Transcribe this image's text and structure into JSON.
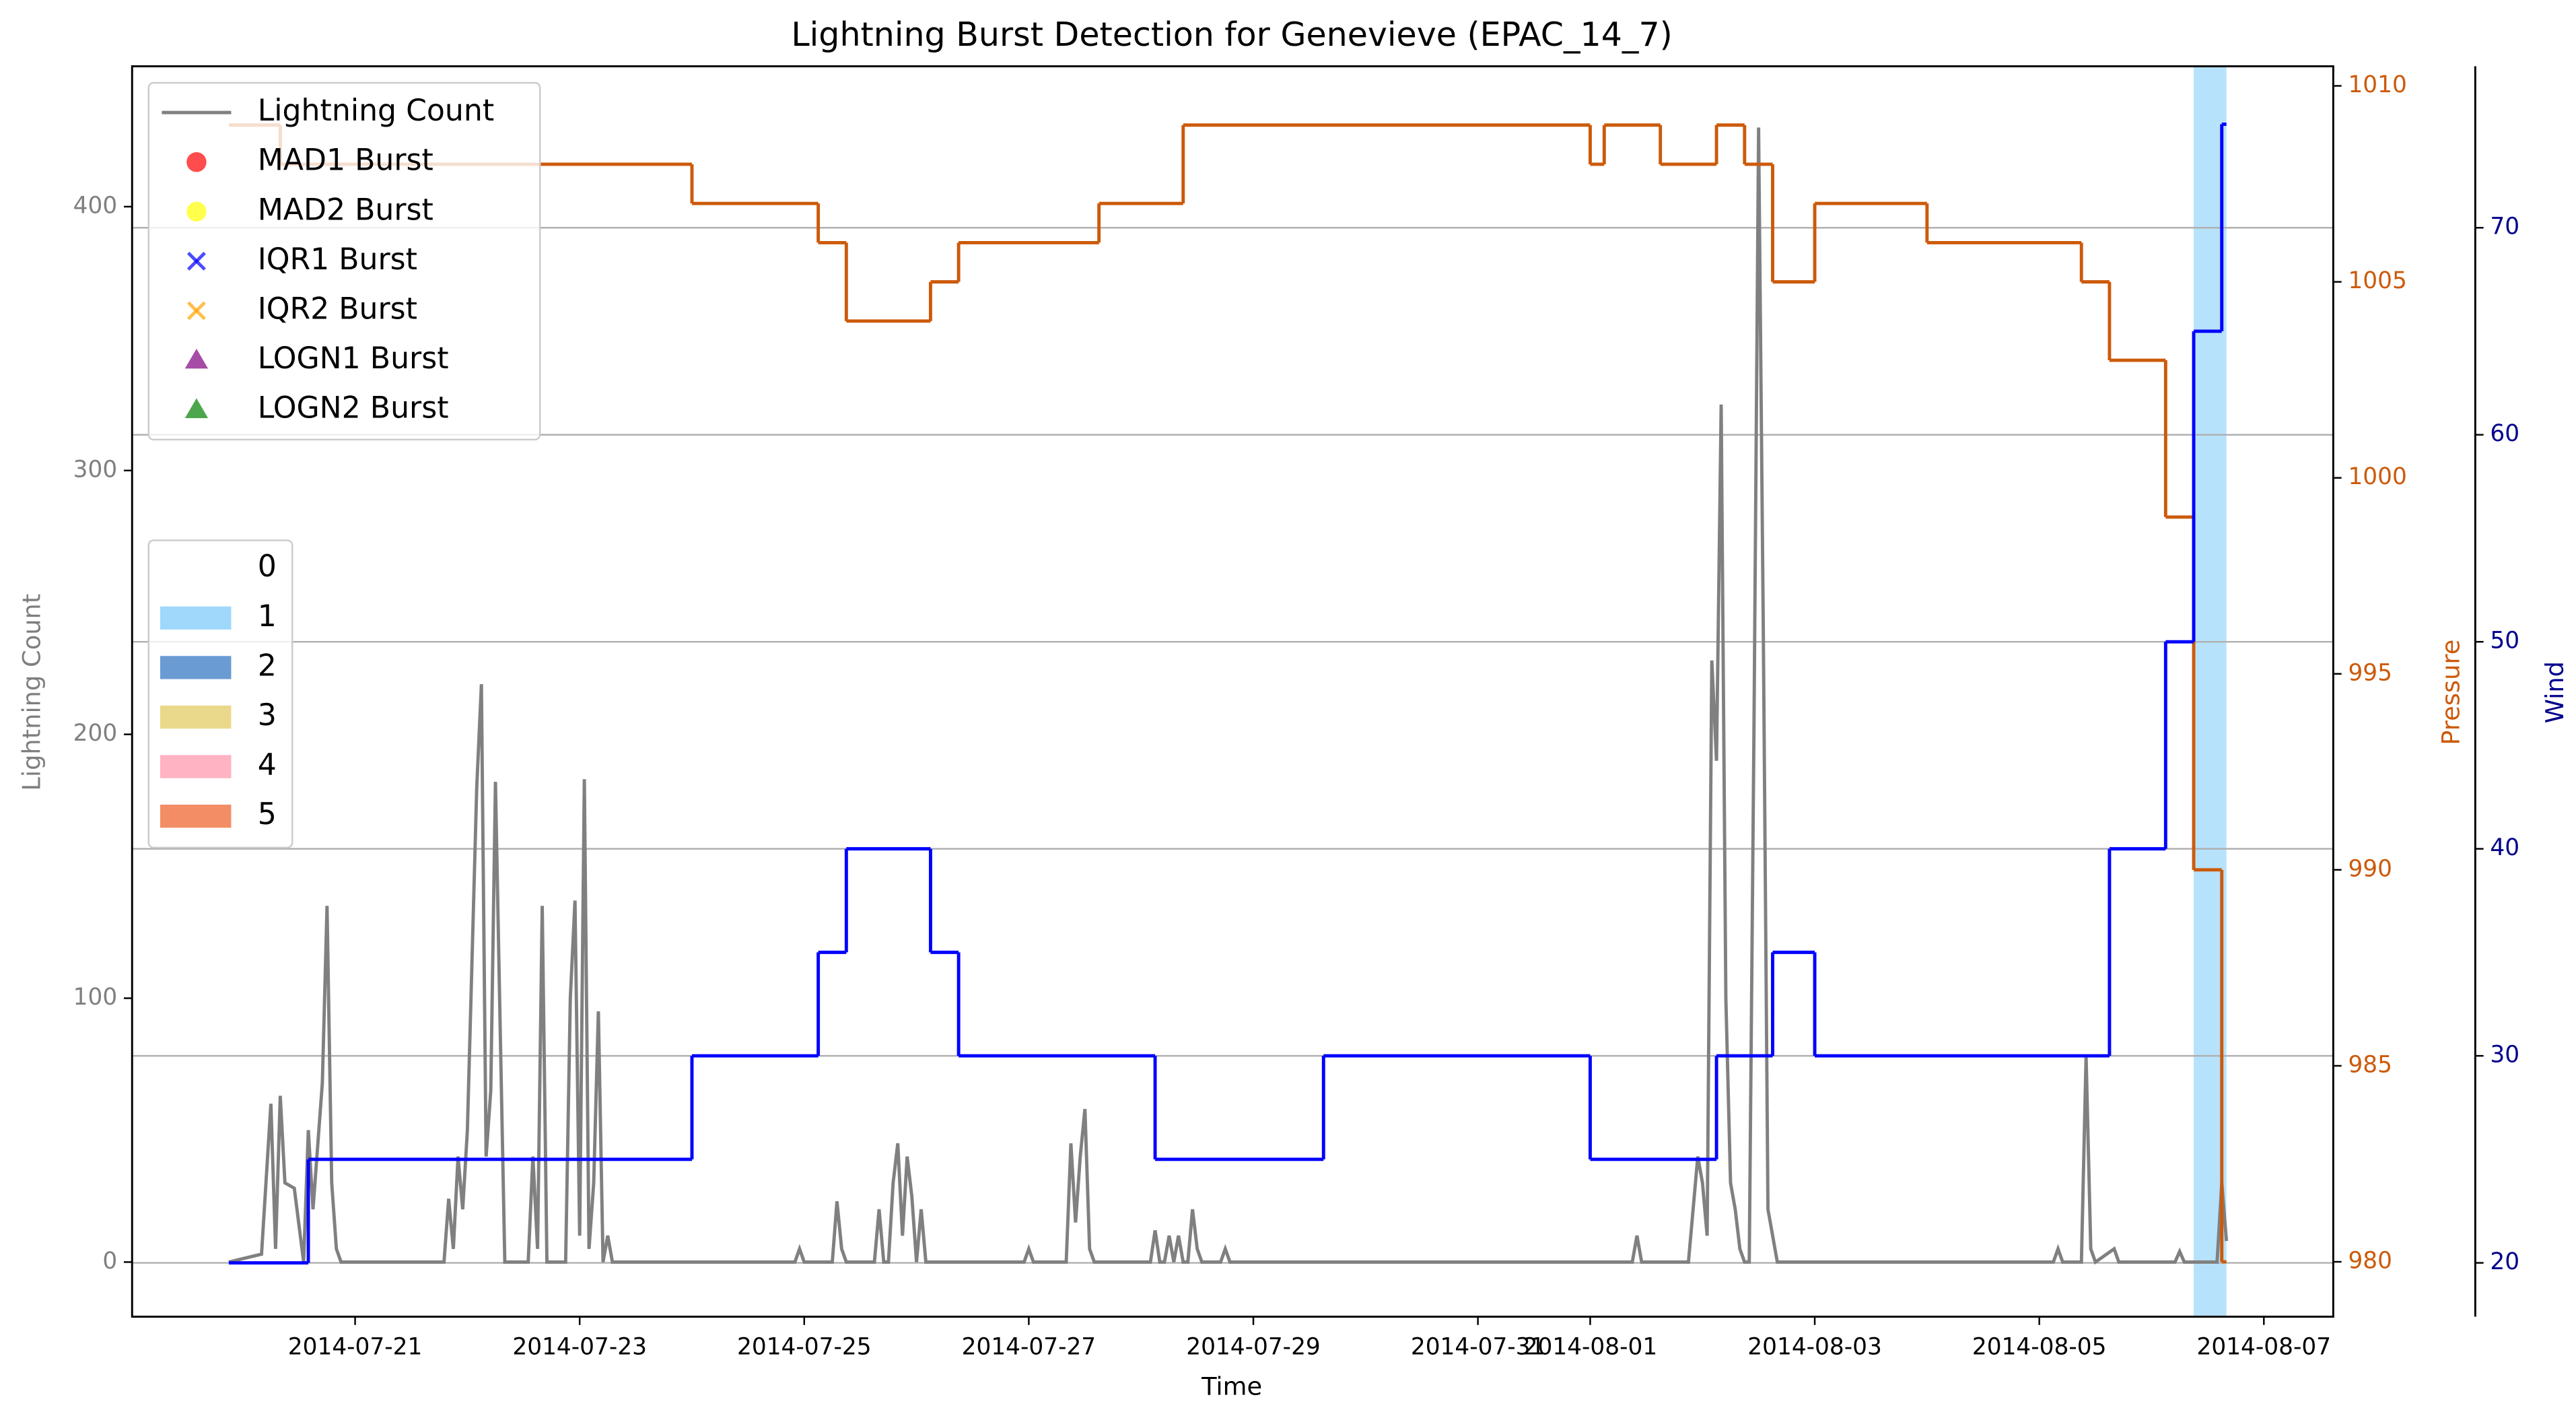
{
  "chart_data": {
    "type": "line",
    "title": "Lightning Burst Detection for Genevieve (EPAC_14_7)",
    "xlabel": "Time",
    "ylabel": "Lightning Count",
    "y2label": "Pressure",
    "y3label": "Wind",
    "y_color": "#7f7f7f",
    "y2_color": "#cc5a0a",
    "y3_color": "#00008b",
    "xlim": [
      "2014-07-19 00:20",
      "2014-08-07 14:50"
    ],
    "xticks": [
      "2014-07-21",
      "2014-07-23",
      "2014-07-25",
      "2014-07-27",
      "2014-07-29",
      "2014-07-31",
      "2014-08-01",
      "2014-08-03",
      "2014-08-05",
      "2014-08-07"
    ],
    "ylim": [
      -20.7,
      453.2
    ],
    "yticks": [
      0,
      100,
      200,
      300,
      400
    ],
    "y2lim": [
      978.6,
      1010.5
    ],
    "y2ticks": [
      980,
      985,
      990,
      995,
      1000,
      1005,
      1010
    ],
    "y3lim": [
      17.4,
      77.8
    ],
    "y3ticks": [
      20,
      30,
      40,
      50,
      60,
      70
    ],
    "grid": true,
    "series": [
      {
        "name": "Lightning Count",
        "color": "#808080",
        "axis": "y",
        "style": "line",
        "x": [
          "2014-07-19 21:00",
          "2014-07-20 04:00",
          "2014-07-20 06:00",
          "2014-07-20 07:00",
          "2014-07-20 08:00",
          "2014-07-20 09:00",
          "2014-07-20 11:00",
          "2014-07-20 13:00",
          "2014-07-20 14:00",
          "2014-07-20 15:00",
          "2014-07-20 17:00",
          "2014-07-20 18:00",
          "2014-07-20 19:00",
          "2014-07-20 20:00",
          "2014-07-20 21:00",
          "2014-07-21 19:00",
          "2014-07-21 20:00",
          "2014-07-21 21:00",
          "2014-07-21 22:00",
          "2014-07-21 23:00",
          "2014-07-22 00:00",
          "2014-07-22 02:00",
          "2014-07-22 03:00",
          "2014-07-22 04:00",
          "2014-07-22 05:00",
          "2014-07-22 06:00",
          "2014-07-22 07:00",
          "2014-07-22 08:00",
          "2014-07-22 13:00",
          "2014-07-22 14:00",
          "2014-07-22 15:00",
          "2014-07-22 16:00",
          "2014-07-22 17:00",
          "2014-07-22 21:00",
          "2014-07-22 22:00",
          "2014-07-22 23:00",
          "2014-07-23 00:00",
          "2014-07-23 01:00",
          "2014-07-23 02:00",
          "2014-07-23 03:00",
          "2014-07-23 04:00",
          "2014-07-23 05:00",
          "2014-07-23 06:00",
          "2014-07-23 07:00",
          "2014-07-24 22:00",
          "2014-07-24 23:00",
          "2014-07-25 00:00",
          "2014-07-25 06:00",
          "2014-07-25 07:00",
          "2014-07-25 08:00",
          "2014-07-25 09:00",
          "2014-07-25 15:00",
          "2014-07-25 16:00",
          "2014-07-25 17:00",
          "2014-07-25 18:00",
          "2014-07-25 19:00",
          "2014-07-25 20:00",
          "2014-07-25 21:00",
          "2014-07-25 22:00",
          "2014-07-25 23:00",
          "2014-07-26 00:00",
          "2014-07-26 01:00",
          "2014-07-26 02:00",
          "2014-07-26 23:00",
          "2014-07-27 00:00",
          "2014-07-27 01:00",
          "2014-07-27 08:00",
          "2014-07-27 09:00",
          "2014-07-27 10:00",
          "2014-07-27 11:00",
          "2014-07-27 12:00",
          "2014-07-27 13:00",
          "2014-07-27 14:00",
          "2014-07-28 02:00",
          "2014-07-28 03:00",
          "2014-07-28 04:00",
          "2014-07-28 05:00",
          "2014-07-28 06:00",
          "2014-07-28 07:00",
          "2014-07-28 08:00",
          "2014-07-28 09:00",
          "2014-07-28 10:00",
          "2014-07-28 11:00",
          "2014-07-28 12:00",
          "2014-07-28 13:00",
          "2014-07-28 17:00",
          "2014-07-28 18:00",
          "2014-07-28 19:00",
          "2014-08-01 09:00",
          "2014-08-01 10:00",
          "2014-08-01 11:00",
          "2014-08-01 21:00",
          "2014-08-01 23:00",
          "2014-08-02 00:00",
          "2014-08-02 01:00",
          "2014-08-02 02:00",
          "2014-08-02 03:00",
          "2014-08-02 04:00",
          "2014-08-02 05:00",
          "2014-08-02 06:00",
          "2014-08-02 07:00",
          "2014-08-02 08:00",
          "2014-08-02 09:00",
          "2014-08-02 10:00",
          "2014-08-02 11:00",
          "2014-08-02 12:00",
          "2014-08-02 13:00",
          "2014-08-02 14:00",
          "2014-08-02 15:00",
          "2014-08-02 16:00",
          "2014-08-05 03:00",
          "2014-08-05 04:00",
          "2014-08-05 05:00",
          "2014-08-05 09:00",
          "2014-08-05 10:00",
          "2014-08-05 11:00",
          "2014-08-05 12:00",
          "2014-08-05 16:00",
          "2014-08-05 17:00",
          "2014-08-06 05:00",
          "2014-08-06 06:00",
          "2014-08-06 07:00",
          "2014-08-06 14:00",
          "2014-08-06 15:00",
          "2014-08-06 16:00"
        ],
        "values": [
          0,
          3,
          60,
          5,
          63,
          30,
          28,
          0,
          50,
          20,
          68,
          135,
          30,
          5,
          0,
          0,
          24,
          5,
          40,
          20,
          50,
          180,
          219,
          40,
          65,
          182,
          90,
          0,
          0,
          40,
          5,
          135,
          0,
          0,
          100,
          137,
          10,
          183,
          5,
          30,
          95,
          0,
          10,
          0,
          0,
          5,
          0,
          0,
          23,
          5,
          0,
          0,
          20,
          0,
          0,
          30,
          45,
          10,
          40,
          25,
          0,
          20,
          0,
          0,
          5,
          0,
          0,
          45,
          15,
          40,
          58,
          5,
          0,
          0,
          12,
          0,
          0,
          10,
          0,
          10,
          0,
          0,
          20,
          5,
          0,
          0,
          5,
          0,
          0,
          10,
          0,
          0,
          40,
          30,
          10,
          228,
          190,
          325,
          100,
          30,
          20,
          5,
          0,
          0,
          200,
          430,
          240,
          20,
          10,
          0,
          0,
          5,
          0,
          0,
          78,
          5,
          0,
          5,
          0,
          0,
          4,
          0,
          0,
          30,
          8
        ]
      },
      {
        "name": "Pressure",
        "color": "#cc5a0a",
        "axis": "y2",
        "style": "steps",
        "x": [
          "2014-07-19 21:00",
          "2014-07-20 08:00",
          "2014-07-24 00:00",
          "2014-07-25 03:00",
          "2014-07-25 09:00",
          "2014-07-26 03:00",
          "2014-07-26 09:00",
          "2014-07-27 15:00",
          "2014-07-28 09:00",
          "2014-08-01 00:00",
          "2014-08-01 03:00",
          "2014-08-01 15:00",
          "2014-08-02 03:00",
          "2014-08-02 09:00",
          "2014-08-02 15:00",
          "2014-08-03 00:00",
          "2014-08-04 00:00",
          "2014-08-05 09:00",
          "2014-08-05 15:00",
          "2014-08-06 03:00",
          "2014-08-06 09:00",
          "2014-08-06 15:00",
          "2014-08-06 16:00"
        ],
        "values": [
          1009,
          1008,
          1007,
          1006,
          1004,
          1005,
          1006,
          1007,
          1009,
          1008,
          1009,
          1008,
          1009,
          1008,
          1005,
          1007,
          1006,
          1005,
          1003,
          999,
          990,
          980,
          980
        ]
      },
      {
        "name": "Wind",
        "color": "#0000ff",
        "axis": "y3",
        "style": "steps",
        "x": [
          "2014-07-19 21:00",
          "2014-07-20 14:00",
          "2014-07-24 00:00",
          "2014-07-25 03:00",
          "2014-07-25 09:00",
          "2014-07-26 03:00",
          "2014-07-26 09:00",
          "2014-07-28 03:00",
          "2014-07-29 15:00",
          "2014-08-01 00:00",
          "2014-08-02 03:00",
          "2014-08-02 15:00",
          "2014-08-03 00:00",
          "2014-08-05 15:00",
          "2014-08-06 03:00",
          "2014-08-06 09:00",
          "2014-08-06 15:00",
          "2014-08-06 16:00"
        ],
        "values": [
          20,
          25,
          30,
          35,
          40,
          35,
          30,
          25,
          30,
          25,
          30,
          35,
          30,
          40,
          50,
          65,
          75,
          75
        ]
      }
    ],
    "burst_legend": [
      {
        "name": "MAD1 Burst",
        "marker": "circle",
        "color": "#ff0000"
      },
      {
        "name": "MAD2 Burst",
        "marker": "circle",
        "color": "#ffff00"
      },
      {
        "name": "IQR1 Burst",
        "marker": "x",
        "color": "#0000ff"
      },
      {
        "name": "IQR2 Burst",
        "marker": "x",
        "color": "#ffa500"
      },
      {
        "name": "LOGN1 Burst",
        "marker": "triangle",
        "color": "#800080"
      },
      {
        "name": "LOGN2 Burst",
        "marker": "triangle",
        "color": "#008000"
      }
    ],
    "category_legend": [
      {
        "label": "0",
        "color": "#ffffff"
      },
      {
        "label": "1",
        "color": "#87cefa"
      },
      {
        "label": "2",
        "color": "#4682c8"
      },
      {
        "label": "3",
        "color": "#e6d06e"
      },
      {
        "label": "4",
        "color": "#ffa0b4"
      },
      {
        "label": "5",
        "color": "#f07040"
      }
    ],
    "spans": [
      {
        "start": "2014-08-06 09:00",
        "end": "2014-08-06 16:00",
        "color": "#87cefa"
      }
    ]
  }
}
